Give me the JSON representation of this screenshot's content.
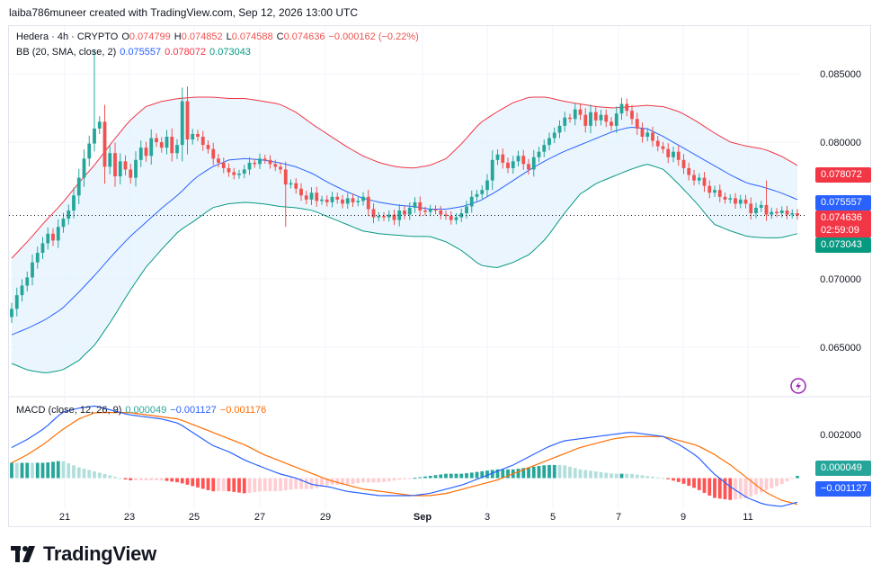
{
  "header": {
    "text": "laiba786muneer created with TradingView.com, Sep 12, 2026 13:00 UTC"
  },
  "legend": {
    "symbol": "Hedera · 4h · CRYPTO",
    "o_label": "O",
    "o_value": "0.074799",
    "h_label": "H",
    "h_value": "0.074852",
    "l_label": "L",
    "l_value": "0.074588",
    "c_label": "C",
    "c_value": "0.074636",
    "change": "−0.000162 (−0.22%)",
    "bb_label": "BB (20, SMA, close, 2)",
    "bb_basis": "0.075557",
    "bb_upper": "0.078072",
    "bb_lower": "0.073043",
    "macd_label": "MACD (close, 12, 26, 9)",
    "macd_hist": "0.000049",
    "macd_line": "−0.001127",
    "macd_signal": "−0.001176"
  },
  "price_labels": {
    "upper": "0.078072",
    "basis": "0.075557",
    "last": "0.074636",
    "countdown": "02:59:09",
    "lower": "0.073043",
    "macd_hist": "0.000049",
    "macd_line": "−0.001127"
  },
  "colors": {
    "up": "#26a69a",
    "down": "#ef5350",
    "upper_band": "#f23645",
    "basis": "#2962ff",
    "lower_band": "#089981",
    "band_fill": "#e3f2fd",
    "macd_line": "#2962ff",
    "signal_line": "#ff6d00",
    "hist_up_strong": "#26a69a",
    "hist_up_weak": "#b2dfdb",
    "hist_down_strong": "#ff5252",
    "hist_down_weak": "#ffcdd2",
    "bolt": "#9c27b0"
  },
  "chart_data": {
    "type": "candlestick",
    "title": "Hedera · 4h · CRYPTO",
    "x_ticks": [
      "21",
      "23",
      "25",
      "27",
      "29",
      "Sep",
      "3",
      "5",
      "7",
      "9",
      "11"
    ],
    "y_ticks": [
      "0.085000",
      "0.080000",
      "0.070000",
      "0.065000"
    ],
    "ylim": [
      0.0615,
      0.0885
    ],
    "macd_ticks": [
      "0.002000"
    ],
    "macd_ylim": [
      -0.0022,
      0.0036
    ],
    "closes": [
      0.0678,
      0.0688,
      0.0695,
      0.0701,
      0.0712,
      0.0719,
      0.0726,
      0.0733,
      0.0728,
      0.0738,
      0.0744,
      0.075,
      0.0761,
      0.0774,
      0.0788,
      0.0799,
      0.081,
      0.0815,
      0.0782,
      0.0792,
      0.0775,
      0.0786,
      0.078,
      0.0774,
      0.0787,
      0.0796,
      0.079,
      0.0803,
      0.08,
      0.0796,
      0.0804,
      0.0792,
      0.0798,
      0.083,
      0.0802,
      0.0806,
      0.0804,
      0.0798,
      0.0795,
      0.0788,
      0.0785,
      0.0781,
      0.0778,
      0.0776,
      0.0777,
      0.078,
      0.0785,
      0.0784,
      0.0788,
      0.0787,
      0.0784,
      0.0782,
      0.078,
      0.0769,
      0.077,
      0.0766,
      0.0761,
      0.0758,
      0.0763,
      0.0757,
      0.0758,
      0.0756,
      0.076,
      0.0758,
      0.0755,
      0.0759,
      0.0756,
      0.0757,
      0.076,
      0.0751,
      0.0745,
      0.0746,
      0.0745,
      0.0747,
      0.0743,
      0.075,
      0.0747,
      0.0752,
      0.0756,
      0.075,
      0.0749,
      0.0751,
      0.075,
      0.0747,
      0.0746,
      0.0743,
      0.0745,
      0.0748,
      0.0753,
      0.076,
      0.0762,
      0.0765,
      0.0772,
      0.0787,
      0.0791,
      0.0785,
      0.0781,
      0.0786,
      0.079,
      0.0784,
      0.078,
      0.0789,
      0.0793,
      0.0798,
      0.0803,
      0.0807,
      0.0812,
      0.0818,
      0.0817,
      0.0824,
      0.082,
      0.0812,
      0.0822,
      0.0816,
      0.082,
      0.0815,
      0.0812,
      0.0821,
      0.0828,
      0.0823,
      0.0817,
      0.081,
      0.0804,
      0.0807,
      0.0801,
      0.0797,
      0.0795,
      0.0789,
      0.0793,
      0.0787,
      0.0781,
      0.0776,
      0.0772,
      0.0774,
      0.0768,
      0.0763,
      0.0765,
      0.076,
      0.0758,
      0.0759,
      0.0755,
      0.0758,
      0.0755,
      0.0748,
      0.0752,
      0.0754,
      0.0747,
      0.0749,
      0.0748,
      0.075,
      0.0747,
      0.0748,
      0.074636
    ],
    "upper_band": [
      0.0715,
      0.0728,
      0.0742,
      0.0755,
      0.077,
      0.0784,
      0.08,
      0.0815,
      0.0826,
      0.083,
      0.0832,
      0.0833,
      0.0833,
      0.0832,
      0.0832,
      0.083,
      0.0828,
      0.0822,
      0.0813,
      0.0805,
      0.0797,
      0.079,
      0.0785,
      0.0782,
      0.0781,
      0.0783,
      0.0788,
      0.08,
      0.0814,
      0.0822,
      0.0829,
      0.0833,
      0.0833,
      0.083,
      0.0828,
      0.0826,
      0.0825,
      0.0826,
      0.0827,
      0.0826,
      0.0822,
      0.0815,
      0.0807,
      0.08,
      0.0797,
      0.0795,
      0.079,
      0.0783
    ],
    "basis": [
      0.0659,
      0.0664,
      0.067,
      0.0678,
      0.069,
      0.0703,
      0.0717,
      0.073,
      0.0741,
      0.0752,
      0.0762,
      0.0774,
      0.0782,
      0.0787,
      0.0788,
      0.0787,
      0.0785,
      0.0782,
      0.0777,
      0.077,
      0.0764,
      0.0759,
      0.0756,
      0.0754,
      0.0753,
      0.0751,
      0.0751,
      0.0753,
      0.0757,
      0.0764,
      0.0772,
      0.078,
      0.0787,
      0.0793,
      0.0798,
      0.0803,
      0.0808,
      0.0811,
      0.081,
      0.0804,
      0.0797,
      0.079,
      0.0783,
      0.0776,
      0.077,
      0.0767,
      0.0763,
      0.0758
    ],
    "lower_band": [
      0.0638,
      0.0633,
      0.0631,
      0.0633,
      0.064,
      0.0652,
      0.067,
      0.069,
      0.0708,
      0.0722,
      0.0735,
      0.0743,
      0.0752,
      0.0755,
      0.0756,
      0.0755,
      0.0753,
      0.0752,
      0.075,
      0.0745,
      0.074,
      0.0735,
      0.0733,
      0.0732,
      0.0731,
      0.0731,
      0.0727,
      0.072,
      0.071,
      0.0708,
      0.0712,
      0.0718,
      0.073,
      0.0747,
      0.0762,
      0.077,
      0.0775,
      0.078,
      0.0784,
      0.078,
      0.0768,
      0.0755,
      0.074,
      0.0735,
      0.0731,
      0.073,
      0.073,
      0.0733
    ],
    "macd_line": [
      0.0014,
      0.0018,
      0.0023,
      0.003,
      0.0032,
      0.0033,
      0.0031,
      0.0029,
      0.0028,
      0.0027,
      0.0025,
      0.002,
      0.0015,
      0.0012,
      0.0008,
      0.0005,
      0.0002,
      0.0,
      -0.0003,
      -0.0004,
      -0.0006,
      -0.0007,
      -0.0008,
      -0.0008,
      -0.0008,
      -0.0007,
      -0.0005,
      -0.0003,
      0.0,
      0.0003,
      0.0006,
      0.001,
      0.0014,
      0.0017,
      0.0018,
      0.0019,
      0.002,
      0.0021,
      0.002,
      0.0019,
      0.0015,
      0.001,
      0.0002,
      -0.0004,
      -0.0009,
      -0.0012,
      -0.0013,
      -0.0011
    ],
    "signal_line": [
      0.0007,
      0.0011,
      0.0016,
      0.0022,
      0.0027,
      0.003,
      0.003,
      0.003,
      0.0029,
      0.0028,
      0.0027,
      0.0024,
      0.0021,
      0.0018,
      0.0015,
      0.0011,
      0.0008,
      0.0005,
      0.0002,
      -0.0001,
      -0.0003,
      -0.0005,
      -0.0006,
      -0.0007,
      -0.0008,
      -0.0008,
      -0.0007,
      -0.0005,
      -0.0003,
      -0.0001,
      0.0002,
      0.0005,
      0.0008,
      0.0011,
      0.0014,
      0.0016,
      0.0018,
      0.0019,
      0.0019,
      0.0019,
      0.0017,
      0.0015,
      0.0011,
      0.0006,
      0.0,
      -0.0006,
      -0.001,
      -0.0012
    ],
    "histogram_note": "histogram = macd_line − signal_line"
  }
}
